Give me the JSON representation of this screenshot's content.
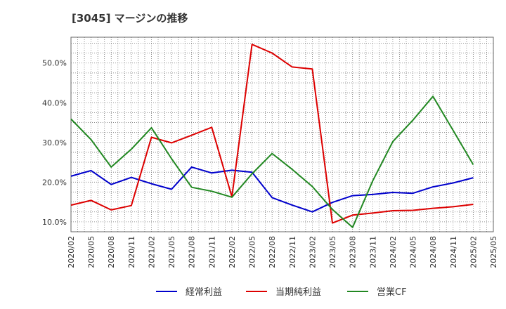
{
  "chart_data": {
    "type": "line",
    "title": "[3045]  マージンの推移",
    "xlabel": "",
    "ylabel": "",
    "x": [
      "2020/02",
      "2020/05",
      "2020/08",
      "2020/11",
      "2021/02",
      "2021/05",
      "2021/08",
      "2021/11",
      "2022/02",
      "2022/05",
      "2022/08",
      "2022/11",
      "2023/02",
      "2023/05",
      "2023/08",
      "2023/11",
      "2024/02",
      "2024/05",
      "2024/08",
      "2024/11",
      "2025/02",
      "2025/05"
    ],
    "y_ticks": [
      "10.0%",
      "20.0%",
      "30.0%",
      "40.0%",
      "50.0%"
    ],
    "y_tick_values": [
      10,
      20,
      30,
      40,
      50
    ],
    "ylim": [
      7.5,
      56.5
    ],
    "grid": true,
    "legend_position": "bottom",
    "series": [
      {
        "name": "経常利益",
        "color": "#0000cc",
        "values": [
          21.5,
          22.9,
          19.4,
          21.2,
          19.6,
          18.2,
          23.8,
          22.3,
          23.0,
          22.5,
          16.1,
          14.2,
          12.5,
          14.9,
          16.6,
          16.9,
          17.4,
          17.2,
          18.8,
          19.8,
          21.1,
          null
        ]
      },
      {
        "name": "当期純利益",
        "color": "#dd0000",
        "values": [
          14.2,
          15.4,
          13.0,
          14.1,
          31.3,
          29.9,
          31.8,
          33.8,
          16.3,
          54.7,
          52.5,
          49.0,
          48.5,
          9.7,
          11.7,
          12.2,
          12.8,
          12.9,
          13.4,
          13.8,
          14.4,
          null
        ]
      },
      {
        "name": "営業CF",
        "color": "#228822",
        "values": [
          35.9,
          30.7,
          23.8,
          28.3,
          33.7,
          25.9,
          18.7,
          17.7,
          16.2,
          22.1,
          27.2,
          23.2,
          18.9,
          13.1,
          8.6,
          20.3,
          30.2,
          35.6,
          41.6,
          33.0,
          24.4,
          null
        ]
      }
    ]
  }
}
